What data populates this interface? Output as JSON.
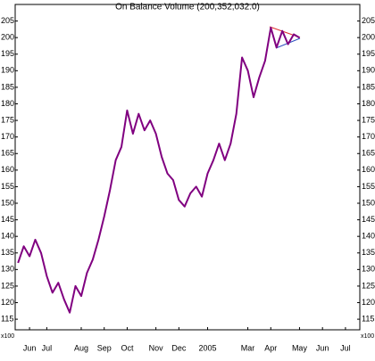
{
  "chart_data": {
    "type": "line",
    "title": "On Balance Volume (200,352,032.0)",
    "unit_label": "x100",
    "categories": [
      null,
      null,
      "Jun",
      null,
      null,
      "Jul",
      null,
      null,
      null,
      null,
      null,
      "Aug",
      null,
      null,
      null,
      "Sep",
      null,
      null,
      null,
      "Oct",
      null,
      null,
      null,
      null,
      "Nov",
      null,
      null,
      null,
      "Dec",
      null,
      null,
      null,
      null,
      "2005",
      null,
      null,
      null,
      null,
      null,
      null,
      "Mar",
      null,
      null,
      null,
      "Apr",
      null,
      null,
      null,
      null,
      "May",
      null,
      null,
      null,
      "Jun",
      null,
      null,
      null,
      "Jul",
      null,
      null
    ],
    "series": [
      {
        "name": "On Balance Volume",
        "color": "#800080",
        "values": [
          132,
          137,
          134,
          139,
          135,
          128,
          123,
          126,
          121,
          117,
          125,
          122,
          129,
          133,
          139,
          146,
          154,
          163,
          167,
          178,
          171,
          177,
          172,
          175,
          171,
          164,
          159,
          157,
          151,
          149,
          153,
          155,
          152,
          159,
          163,
          168,
          163,
          168,
          177,
          194,
          190,
          182,
          188,
          193,
          203,
          197,
          202,
          198,
          201,
          200,
          null,
          null,
          null,
          null,
          null,
          null,
          null,
          null,
          null,
          null
        ]
      }
    ],
    "ylim": [
      111.8,
      210
    ],
    "yticks": [
      115,
      120,
      125,
      130,
      135,
      140,
      145,
      150,
      155,
      160,
      165,
      170,
      175,
      180,
      185,
      190,
      195,
      200,
      205
    ]
  }
}
